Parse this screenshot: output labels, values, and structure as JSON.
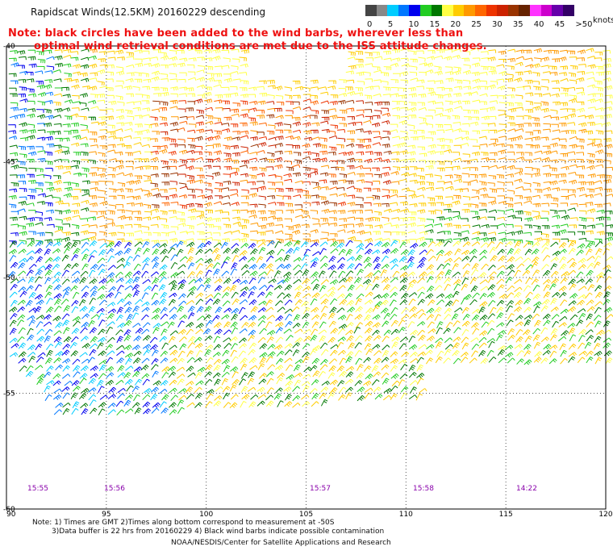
{
  "header": {
    "title": "Rapidscat Winds(12.5KM) 20160229 descending",
    "note_line1": "Note: black circles have been added to the wind barbs, wherever less than",
    "note_line2": "optimal wind retrieval conditions are met due to the ISS attitude changes."
  },
  "legend": {
    "unit": "knots",
    "colors": [
      "#444444",
      "#888888",
      "#00ccff",
      "#0077ff",
      "#0000ee",
      "#22cc22",
      "#007700",
      "#ffff44",
      "#ffcc00",
      "#ff9900",
      "#ff6600",
      "#ee3300",
      "#cc2200",
      "#993300",
      "#662200",
      "#ff33ff",
      "#cc00cc",
      "#6600aa",
      "#330066"
    ],
    "labels": [
      {
        "text": "0",
        "idx": 0
      },
      {
        "text": "5",
        "idx": 2
      },
      {
        "text": "10",
        "idx": 4
      },
      {
        "text": "15",
        "idx": 6
      },
      {
        "text": "20",
        "idx": 8
      },
      {
        "text": "25",
        "idx": 10
      },
      {
        "text": "30",
        "idx": 12
      },
      {
        "text": "35",
        "idx": 14
      },
      {
        "text": "40",
        "idx": 16
      },
      {
        "text": "45",
        "idx": 18
      },
      {
        "text": ">50",
        "idx": 20
      }
    ]
  },
  "map": {
    "lon_ticks": [
      "90",
      "95",
      "100",
      "105",
      "110",
      "115",
      "120"
    ],
    "lat_ticks": [
      "-40",
      "-45",
      "-50",
      "-55",
      "-60"
    ],
    "times": [
      "15:55",
      "15:56",
      "15:57",
      "15:58",
      "14:22"
    ]
  },
  "footer": {
    "line1": "Note: 1) Times are GMT 2)Times along bottom correspond to measurement at -50S",
    "line2": "3)Data buffer is 22 hrs from 20160229 4) Black wind barbs indicate possible contamination",
    "line3": "NOAA/NESDIS/Center for Satellite Applications and Research"
  }
}
